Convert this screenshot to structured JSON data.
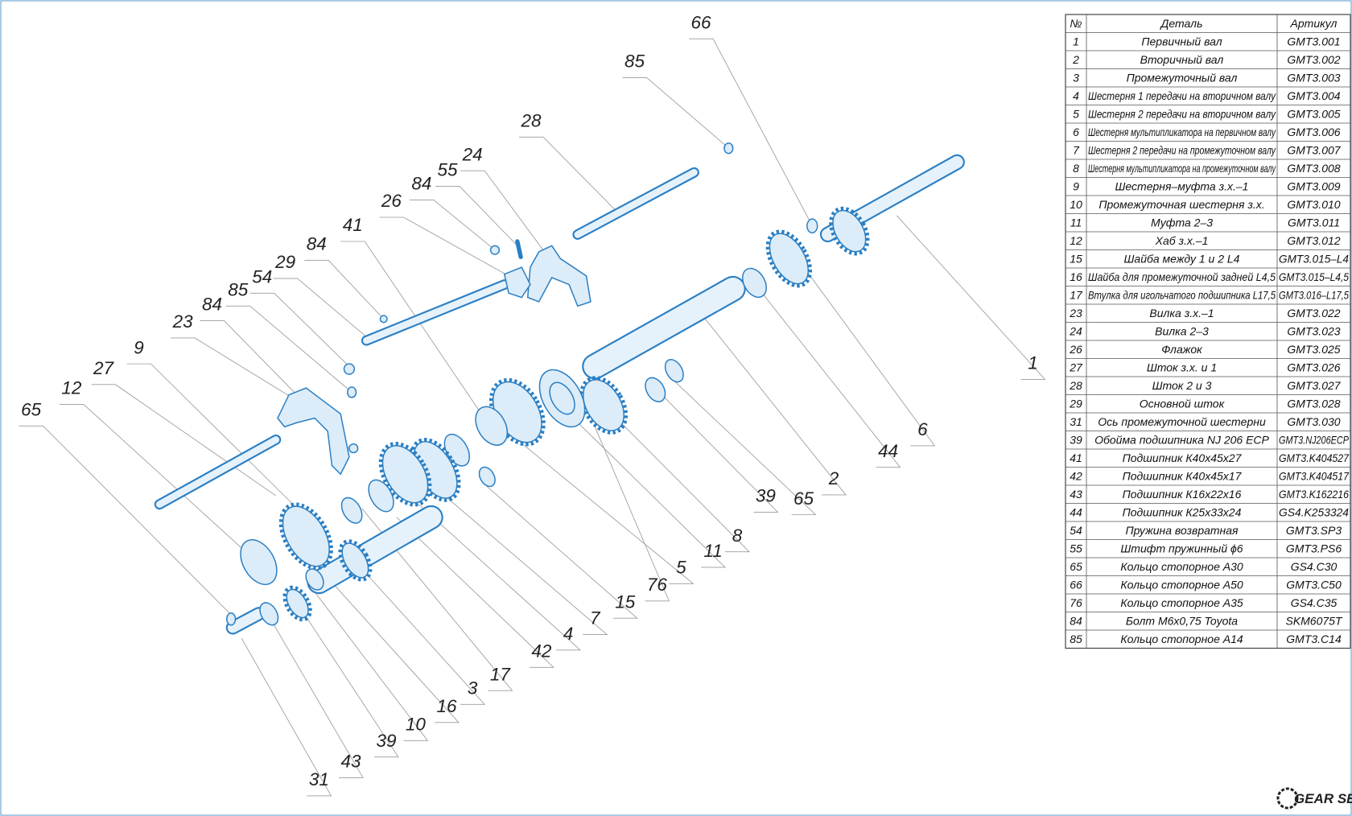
{
  "callouts": [
    "66",
    "85",
    "28",
    "24",
    "55",
    "84",
    "26",
    "41",
    "84",
    "29",
    "54",
    "85",
    "23",
    "84",
    "9",
    "27",
    "12",
    "65",
    "1",
    "6",
    "44",
    "2",
    "65",
    "39",
    "8",
    "11",
    "5",
    "76",
    "15",
    "7",
    "4",
    "42",
    "17",
    "3",
    "16",
    "10",
    "39",
    "43",
    "31"
  ],
  "table": {
    "header": [
      "№",
      "Деталь",
      "Артикул"
    ],
    "rows": [
      [
        "1",
        "Первичный вал",
        "GMT3.001"
      ],
      [
        "2",
        "Вторичный вал",
        "GMT3.002"
      ],
      [
        "3",
        "Промежуточный вал",
        "GMT3.003"
      ],
      [
        "4",
        "Шестерня 1 передачи на вторичном валу",
        "GMT3.004"
      ],
      [
        "5",
        "Шестерня 2 передачи на вторичном валу",
        "GMT3.005"
      ],
      [
        "6",
        "Шестерня мультипликатора на первичном валу",
        "GMT3.006"
      ],
      [
        "7",
        "Шестерня 2 передачи на промежуточном валу",
        "GMT3.007"
      ],
      [
        "8",
        "Шестерня мультипликатора на промежуточном валу",
        "GMT3.008"
      ],
      [
        "9",
        "Шестерня–муфта з.х.–1",
        "GMT3.009"
      ],
      [
        "10",
        "Промежуточная шестерня з.х.",
        "GMT3.010"
      ],
      [
        "11",
        "Муфта 2–3",
        "GMT3.011"
      ],
      [
        "12",
        "Хаб з.х.–1",
        "GMT3.012"
      ],
      [
        "15",
        "Шайба между 1 и 2 L4",
        "GMT3.015–L4"
      ],
      [
        "16",
        "Шайба для промежуточной задней L4,5",
        "GMT3.015–L4,5"
      ],
      [
        "17",
        "Втулка для игольчатого подшипника L17,5",
        "GMT3.016–L17,5"
      ],
      [
        "23",
        "Вилка з.х.–1",
        "GMT3.022"
      ],
      [
        "24",
        "Вилка 2–3",
        "GMT3.023"
      ],
      [
        "26",
        "Флажок",
        "GMT3.025"
      ],
      [
        "27",
        "Шток з.х. и 1",
        "GMT3.026"
      ],
      [
        "28",
        "Шток 2 и 3",
        "GMT3.027"
      ],
      [
        "29",
        "Основной шток",
        "GMT3.028"
      ],
      [
        "31",
        "Ось промежуточной шестерни",
        "GMT3.030"
      ],
      [
        "39",
        "Обойма подшипника NJ 206 ECP",
        "GMT3.NJ206ECP"
      ],
      [
        "41",
        "Подшипник К40х45х27",
        "GMT3.K404527"
      ],
      [
        "42",
        "Подшипник К40х45х17",
        "GMT3.K404517"
      ],
      [
        "43",
        "Подшипник К16х22х16",
        "GMT3.K162216"
      ],
      [
        "44",
        "Подшипник К25х33х24",
        "GS4.K253324"
      ],
      [
        "54",
        "Пружина возвратная",
        "GMT3.SP3"
      ],
      [
        "55",
        "Штифт пружинный ϕ6",
        "GMT3.PS6"
      ],
      [
        "65",
        "Кольцо стопорное А30",
        "GS4.C30"
      ],
      [
        "66",
        "Кольцо стопорное А50",
        "GMT3.C50"
      ],
      [
        "76",
        "Кольцо стопорное А35",
        "GS4.C35"
      ],
      [
        "84",
        "Болт М6х0,75 Toyota",
        "SKM6075T"
      ],
      [
        "85",
        "Кольцо стопорное А14",
        "GMT3.C14"
      ]
    ]
  },
  "logo": "GEAR SET"
}
